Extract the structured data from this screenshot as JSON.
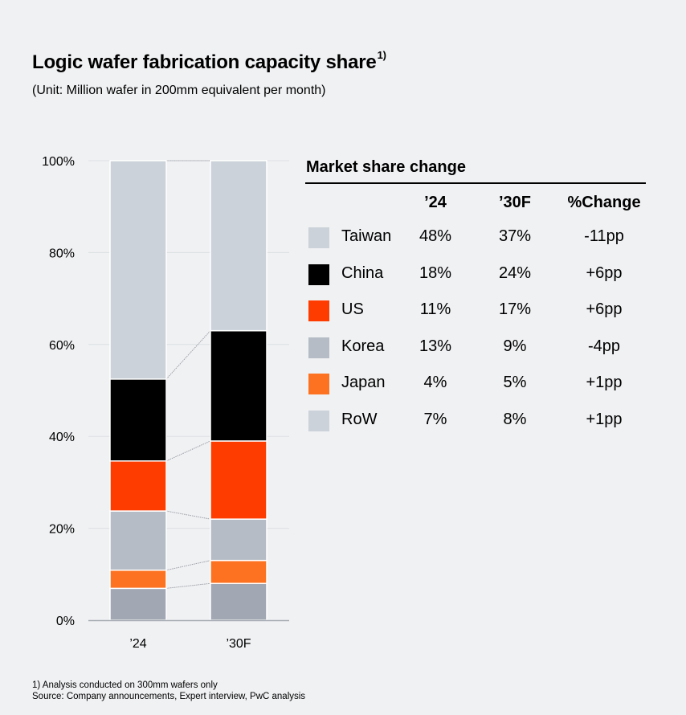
{
  "header": {
    "title": "Logic wafer fabrication capacity share",
    "title_superscript": "1)",
    "subtitle": "(Unit: Million wafer in 200mm equivalent per month)"
  },
  "chart_data": {
    "type": "bar",
    "stacked": true,
    "normalized": true,
    "categories": [
      "’24",
      "’30F"
    ],
    "series": [
      {
        "name": "RoW",
        "color": "#a1a8b4",
        "values": [
          7,
          8
        ]
      },
      {
        "name": "Japan",
        "color": "#fd7220",
        "values": [
          4,
          5
        ]
      },
      {
        "name": "Korea",
        "color": "#b5bcc5",
        "values": [
          13,
          9
        ]
      },
      {
        "name": "US",
        "color": "#fe3c00",
        "values": [
          11,
          17
        ]
      },
      {
        "name": "China",
        "color": "#000000",
        "values": [
          18,
          24
        ]
      },
      {
        "name": "Taiwan",
        "color": "#cbd2d9",
        "values": [
          48,
          37
        ]
      }
    ],
    "y_ticks": [
      "0%",
      "20%",
      "40%",
      "60%",
      "80%",
      "100%"
    ],
    "ylim": [
      0,
      100
    ],
    "ylabel": "",
    "xlabel": "",
    "grid": true,
    "connector_lines": true
  },
  "legend_table": {
    "title": "Market share change",
    "headers": {
      "y24": "’24",
      "y30": "’30F",
      "change": "%Change"
    },
    "rows": [
      {
        "region": "Taiwan",
        "color": "#cbd2d9",
        "y24": "48%",
        "y30": "37%",
        "change": "-11pp"
      },
      {
        "region": "China",
        "color": "#000000",
        "y24": "18%",
        "y30": "24%",
        "change": "+6pp"
      },
      {
        "region": "US",
        "color": "#fe3c00",
        "y24": "11%",
        "y30": "17%",
        "change": "+6pp"
      },
      {
        "region": "Korea",
        "color": "#b5bcc5",
        "y24": "13%",
        "y30": "9%",
        "change": "-4pp"
      },
      {
        "region": "Japan",
        "color": "#fd7220",
        "y24": "4%",
        "y30": "5%",
        "change": "+1pp"
      },
      {
        "region": "RoW",
        "color": "#cbd2d9",
        "y24": "7%",
        "y30": "8%",
        "change": "+1pp"
      }
    ]
  },
  "footnotes": {
    "note1": "1) Analysis conducted on 300mm wafers only",
    "source": "Source: Company announcements, Expert interview, PwC analysis"
  }
}
